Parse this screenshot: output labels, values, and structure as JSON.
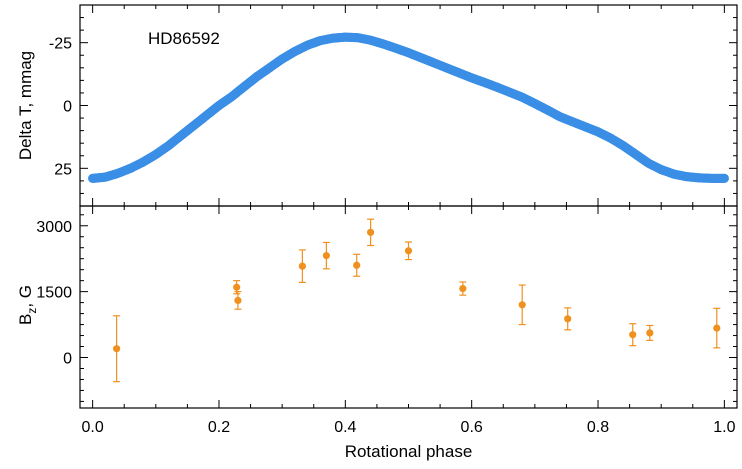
{
  "chart_data": [
    {
      "type": "scatter",
      "annotation": "HD86592",
      "ylabel": "Delta T, mmag",
      "xlim": [
        -0.02,
        1.02
      ],
      "ylim": [
        40,
        -40
      ],
      "y_inverted": true,
      "yticks": [
        -25,
        0,
        25
      ],
      "ytick_labels": [
        "-25",
        "0",
        "25"
      ],
      "xticks": [
        0.0,
        0.2,
        0.4,
        0.6,
        0.8,
        1.0
      ],
      "marker_color": "#3a8ee6",
      "series": [
        {
          "x": [
            0.0,
            0.02,
            0.04,
            0.06,
            0.08,
            0.1,
            0.12,
            0.14,
            0.16,
            0.18,
            0.2,
            0.22,
            0.24,
            0.26,
            0.28,
            0.3,
            0.32,
            0.34,
            0.36,
            0.38,
            0.4,
            0.42,
            0.44,
            0.46,
            0.48,
            0.5,
            0.52,
            0.54,
            0.56,
            0.58,
            0.6,
            0.62,
            0.64,
            0.66,
            0.68,
            0.7,
            0.72,
            0.74,
            0.76,
            0.78,
            0.8,
            0.82,
            0.84,
            0.86,
            0.88,
            0.9,
            0.92,
            0.94,
            0.96,
            0.98,
            1.0
          ],
          "y": [
            29,
            28.5,
            27,
            25,
            22.5,
            19.5,
            16,
            12,
            8,
            4,
            0,
            -3.5,
            -7.5,
            -11.5,
            -15,
            -18.5,
            -21.5,
            -24,
            -25.8,
            -26.8,
            -27.2,
            -27,
            -26,
            -24.5,
            -22.8,
            -21,
            -19,
            -17,
            -15,
            -13,
            -11,
            -9.2,
            -7.3,
            -5.3,
            -3.3,
            -0.8,
            1.8,
            4.5,
            6.5,
            8.5,
            10.5,
            13,
            16,
            19.5,
            23,
            25.5,
            27.3,
            28.3,
            28.8,
            29,
            29
          ]
        }
      ]
    },
    {
      "type": "scatter",
      "xlabel": "Rotational phase",
      "ylabel_main": "B",
      "ylabel_sub": "z",
      "ylabel_rest": ", G",
      "xlim": [
        -0.02,
        1.02
      ],
      "ylim": [
        -1150,
        3450
      ],
      "yticks": [
        0,
        1500,
        3000
      ],
      "ytick_labels": [
        "0",
        "1500",
        "3000"
      ],
      "xticks": [
        0.0,
        0.2,
        0.4,
        0.6,
        0.8,
        1.0
      ],
      "xtick_labels": [
        "0.0",
        "0.2",
        "0.4",
        "0.6",
        "0.8",
        "1.0"
      ],
      "marker_color": "#f0901e",
      "series": [
        {
          "x": [
            0.038,
            0.228,
            0.23,
            0.332,
            0.37,
            0.418,
            0.44,
            0.5,
            0.586,
            0.68,
            0.752,
            0.855,
            0.882,
            0.988
          ],
          "y": [
            200,
            1600,
            1300,
            2080,
            2320,
            2100,
            2850,
            2430,
            1570,
            1200,
            880,
            520,
            560,
            670
          ],
          "err": [
            750,
            150,
            200,
            370,
            300,
            250,
            300,
            200,
            150,
            450,
            250,
            250,
            170,
            450
          ]
        }
      ]
    }
  ]
}
